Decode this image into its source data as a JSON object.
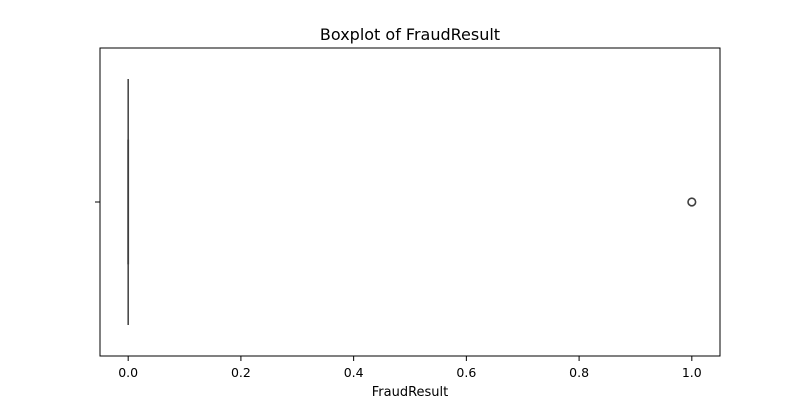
{
  "chart_data": {
    "type": "boxplot",
    "orientation": "horizontal",
    "title": "Boxplot of FraudResult",
    "xlabel": "FraudResult",
    "ylabel": "",
    "xlim": [
      -0.05,
      1.05
    ],
    "xticks": [
      0.0,
      0.2,
      0.4,
      0.6,
      0.8,
      1.0
    ],
    "xtick_labels": [
      "0.0",
      "0.2",
      "0.4",
      "0.6",
      "0.8",
      "1.0"
    ],
    "box": {
      "min": 0,
      "q1": 0,
      "median": 0,
      "q3": 0,
      "max": 0
    },
    "outliers": [
      1.0
    ],
    "grid": false,
    "legend": "none"
  }
}
